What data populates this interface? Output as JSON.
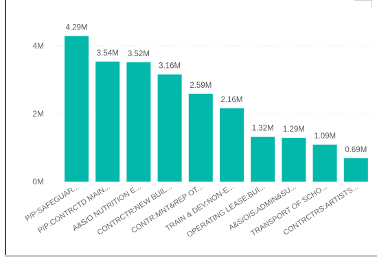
{
  "chart_data": {
    "type": "bar",
    "categories": [
      "P/P:SAFEGUAR...",
      "P/P:CONTRCTD MAIN...",
      "A&S/O NUTRITION E...",
      "CONTRCTR:NEW BUIL...",
      "CONTR:MNT&REP OT...",
      "TRAIN & DEV:NON-E...",
      "OPERATING LEASE:BUI...",
      "A&S/O/S:ADMIN&SU...",
      "TRANSPORT OF SCHO...",
      "CONTRCTRS:ARTISTS..."
    ],
    "values": [
      4.29,
      3.54,
      3.52,
      3.16,
      2.59,
      2.16,
      1.32,
      1.29,
      1.09,
      0.69
    ],
    "data_labels": [
      "4.29M",
      "3.54M",
      "3.52M",
      "3.16M",
      "2.59M",
      "2.16M",
      "1.32M",
      "1.29M",
      "1.09M",
      "0.69M"
    ],
    "unit": "M",
    "ylim": [
      0,
      4.5
    ],
    "yticks": [
      {
        "value": 0,
        "label": "0M"
      },
      {
        "value": 2,
        "label": "2M"
      },
      {
        "value": 4,
        "label": "4M"
      }
    ],
    "grid": true,
    "bar_color": "#01b8aa",
    "title": "",
    "xlabel": "",
    "ylabel": ""
  }
}
